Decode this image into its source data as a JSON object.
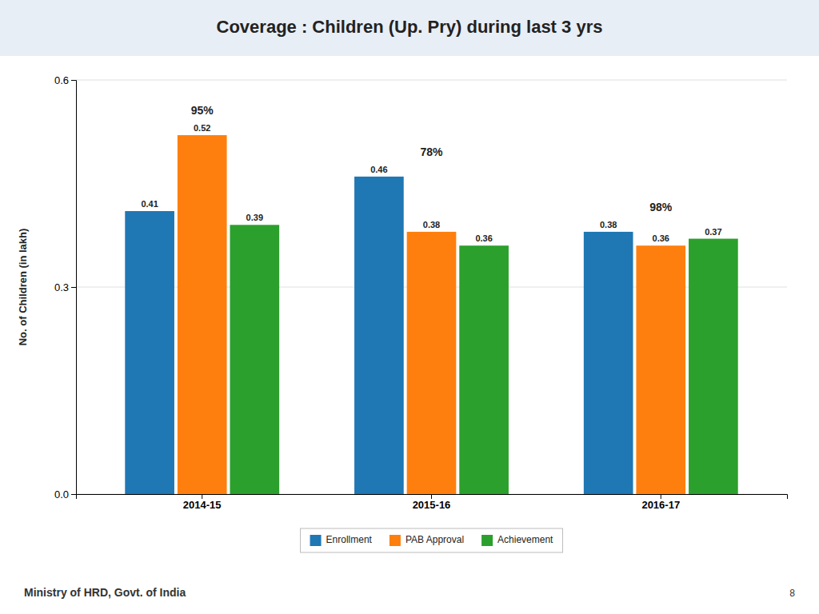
{
  "chart_data": {
    "type": "bar",
    "title": "Coverage : Children (Up. Pry) during last 3 yrs",
    "ylabel": "No. of Children (in lakh)",
    "categories": [
      "2014-15",
      "2015-16",
      "2016-17"
    ],
    "series": [
      {
        "name": "Enrollment",
        "values": [
          0.41,
          0.46,
          0.38
        ]
      },
      {
        "name": "PAB Approval",
        "values": [
          0.52,
          0.38,
          0.36
        ]
      },
      {
        "name": "Achievement",
        "values": [
          0.39,
          0.36,
          0.37
        ]
      }
    ],
    "ylim": [
      0.0,
      0.6
    ],
    "yticks": [
      {
        "value": 0.0,
        "label": "0.0"
      },
      0.3,
      0.6
    ],
    "grid": true,
    "legend": "bottom",
    "data_labels": true,
    "annotations": [
      {
        "text": "95%",
        "x": "2014-15"
      },
      {
        "text": "78%",
        "x": "2015-16"
      },
      {
        "text": "98%",
        "x": "2016-17"
      }
    ],
    "footer": "Ministry of HRD, Govt. of India",
    "page_number": "8"
  }
}
